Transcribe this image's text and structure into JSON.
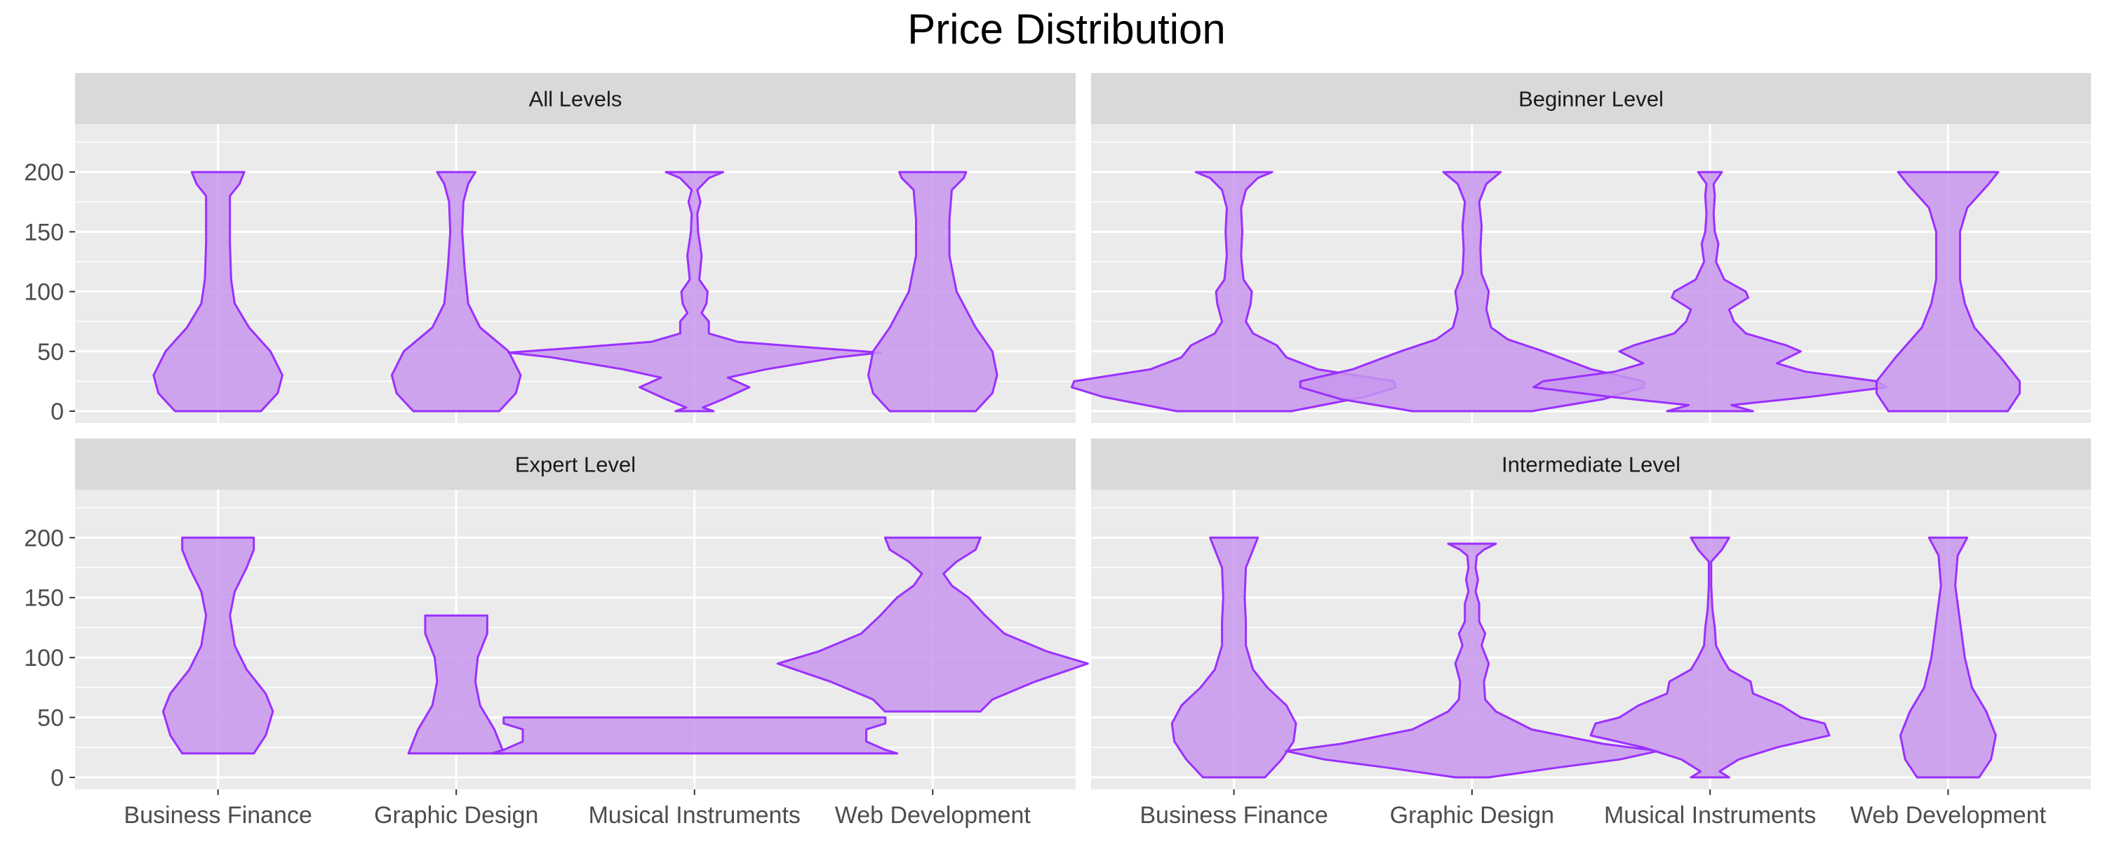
{
  "chart_data": {
    "type": "violin",
    "title": "Price Distribution",
    "xlabel": "",
    "ylabel": "",
    "categories": [
      "Business Finance",
      "Graphic Design",
      "Musical Instruments",
      "Web Development"
    ],
    "ylim": [
      -10,
      240
    ],
    "y_ticks": [
      0,
      50,
      100,
      150,
      200
    ],
    "grid": true,
    "facet_layout": "2x2",
    "colors": {
      "fill": "#c896ee",
      "stroke": "#9b30ff",
      "panel_bg": "#ebebeb",
      "strip_bg": "#d9d9d9",
      "grid": "#ffffff"
    },
    "panels": [
      {
        "label": "All Levels",
        "violins": [
          {
            "category": "Business Finance",
            "profile": [
              [
                0,
                0.18
              ],
              [
                15,
                0.25
              ],
              [
                30,
                0.27
              ],
              [
                50,
                0.22
              ],
              [
                70,
                0.13
              ],
              [
                90,
                0.07
              ],
              [
                110,
                0.055
              ],
              [
                140,
                0.05
              ],
              [
                160,
                0.05
              ],
              [
                180,
                0.05
              ],
              [
                190,
                0.09
              ],
              [
                200,
                0.11
              ]
            ]
          },
          {
            "category": "Graphic Design",
            "profile": [
              [
                0,
                0.18
              ],
              [
                15,
                0.25
              ],
              [
                30,
                0.27
              ],
              [
                50,
                0.22
              ],
              [
                70,
                0.1
              ],
              [
                90,
                0.05
              ],
              [
                120,
                0.035
              ],
              [
                150,
                0.025
              ],
              [
                175,
                0.03
              ],
              [
                190,
                0.05
              ],
              [
                200,
                0.08
              ]
            ]
          },
          {
            "category": "Musical Instruments",
            "profile": [
              [
                0,
                0.08
              ],
              [
                3,
                0.035
              ],
              [
                10,
                0.12
              ],
              [
                20,
                0.23
              ],
              [
                28,
                0.14
              ],
              [
                35,
                0.3
              ],
              [
                45,
                0.6
              ],
              [
                49,
                0.78
              ],
              [
                53,
                0.5
              ],
              [
                58,
                0.18
              ],
              [
                65,
                0.06
              ],
              [
                75,
                0.06
              ],
              [
                82,
                0.03
              ],
              [
                90,
                0.05
              ],
              [
                100,
                0.055
              ],
              [
                110,
                0.02
              ],
              [
                130,
                0.03
              ],
              [
                150,
                0.015
              ],
              [
                165,
                0.012
              ],
              [
                175,
                0.025
              ],
              [
                185,
                0.012
              ],
              [
                195,
                0.06
              ],
              [
                200,
                0.12
              ]
            ]
          },
          {
            "category": "Web Development",
            "profile": [
              [
                0,
                0.18
              ],
              [
                15,
                0.25
              ],
              [
                30,
                0.27
              ],
              [
                50,
                0.25
              ],
              [
                70,
                0.18
              ],
              [
                100,
                0.1
              ],
              [
                130,
                0.07
              ],
              [
                160,
                0.07
              ],
              [
                185,
                0.08
              ],
              [
                195,
                0.13
              ],
              [
                200,
                0.14
              ]
            ]
          }
        ]
      },
      {
        "label": "Beginner Level",
        "violins": [
          {
            "category": "Business Finance",
            "profile": [
              [
                0,
                0.24
              ],
              [
                12,
                0.55
              ],
              [
                20,
                0.68
              ],
              [
                25,
                0.67
              ],
              [
                35,
                0.35
              ],
              [
                45,
                0.22
              ],
              [
                55,
                0.18
              ],
              [
                65,
                0.08
              ],
              [
                75,
                0.05
              ],
              [
                90,
                0.07
              ],
              [
                100,
                0.075
              ],
              [
                110,
                0.04
              ],
              [
                130,
                0.03
              ],
              [
                150,
                0.035
              ],
              [
                170,
                0.03
              ],
              [
                185,
                0.05
              ],
              [
                195,
                0.1
              ],
              [
                200,
                0.16
              ]
            ]
          },
          {
            "category": "Graphic Design",
            "profile": [
              [
                0,
                0.25
              ],
              [
                10,
                0.55
              ],
              [
                20,
                0.72
              ],
              [
                25,
                0.72
              ],
              [
                35,
                0.5
              ],
              [
                50,
                0.3
              ],
              [
                60,
                0.15
              ],
              [
                70,
                0.08
              ],
              [
                85,
                0.06
              ],
              [
                100,
                0.07
              ],
              [
                115,
                0.04
              ],
              [
                135,
                0.035
              ],
              [
                155,
                0.04
              ],
              [
                175,
                0.03
              ],
              [
                190,
                0.06
              ],
              [
                200,
                0.12
              ]
            ]
          },
          {
            "category": "Musical Instruments",
            "profile": [
              [
                0,
                0.18
              ],
              [
                5,
                0.09
              ],
              [
                12,
                0.42
              ],
              [
                20,
                0.74
              ],
              [
                25,
                0.7
              ],
              [
                33,
                0.4
              ],
              [
                40,
                0.28
              ],
              [
                50,
                0.38
              ],
              [
                55,
                0.32
              ],
              [
                65,
                0.15
              ],
              [
                75,
                0.1
              ],
              [
                85,
                0.08
              ],
              [
                95,
                0.16
              ],
              [
                100,
                0.15
              ],
              [
                110,
                0.06
              ],
              [
                125,
                0.025
              ],
              [
                140,
                0.035
              ],
              [
                150,
                0.02
              ],
              [
                165,
                0.015
              ],
              [
                180,
                0.02
              ],
              [
                190,
                0.015
              ],
              [
                200,
                0.05
              ]
            ]
          },
          {
            "category": "Web Development",
            "profile": [
              [
                0,
                0.25
              ],
              [
                15,
                0.3
              ],
              [
                25,
                0.3
              ],
              [
                45,
                0.22
              ],
              [
                70,
                0.11
              ],
              [
                90,
                0.07
              ],
              [
                110,
                0.05
              ],
              [
                130,
                0.05
              ],
              [
                150,
                0.05
              ],
              [
                170,
                0.08
              ],
              [
                190,
                0.17
              ],
              [
                200,
                0.21
              ]
            ]
          }
        ]
      },
      {
        "label": "Expert Level",
        "violins": [
          {
            "category": "Business Finance",
            "profile": [
              [
                20,
                0.15
              ],
              [
                35,
                0.2
              ],
              [
                55,
                0.23
              ],
              [
                70,
                0.2
              ],
              [
                90,
                0.12
              ],
              [
                110,
                0.07
              ],
              [
                135,
                0.05
              ],
              [
                155,
                0.07
              ],
              [
                175,
                0.12
              ],
              [
                190,
                0.15
              ],
              [
                200,
                0.15
              ]
            ]
          },
          {
            "category": "Graphic Design",
            "profile": [
              [
                20,
                0.2
              ],
              [
                40,
                0.16
              ],
              [
                60,
                0.1
              ],
              [
                80,
                0.08
              ],
              [
                100,
                0.09
              ],
              [
                120,
                0.13
              ],
              [
                135,
                0.13
              ]
            ]
          },
          {
            "category": "Musical Instruments",
            "profile": [
              [
                20,
                0.85
              ],
              [
                23,
                0.8
              ],
              [
                30,
                0.72
              ],
              [
                35,
                0.72
              ],
              [
                40,
                0.72
              ],
              [
                45,
                0.8
              ],
              [
                50,
                0.8
              ]
            ]
          },
          {
            "category": "Web Development",
            "profile": [
              [
                55,
                0.2
              ],
              [
                65,
                0.25
              ],
              [
                80,
                0.43
              ],
              [
                95,
                0.65
              ],
              [
                105,
                0.48
              ],
              [
                120,
                0.3
              ],
              [
                135,
                0.22
              ],
              [
                150,
                0.15
              ],
              [
                160,
                0.08
              ],
              [
                170,
                0.045
              ],
              [
                180,
                0.1
              ],
              [
                190,
                0.18
              ],
              [
                200,
                0.2
              ]
            ]
          }
        ]
      },
      {
        "label": "Intermediate Level",
        "violins": [
          {
            "category": "Business Finance",
            "profile": [
              [
                0,
                0.13
              ],
              [
                15,
                0.2
              ],
              [
                30,
                0.25
              ],
              [
                45,
                0.26
              ],
              [
                60,
                0.22
              ],
              [
                75,
                0.14
              ],
              [
                90,
                0.08
              ],
              [
                110,
                0.05
              ],
              [
                130,
                0.05
              ],
              [
                150,
                0.045
              ],
              [
                175,
                0.05
              ],
              [
                190,
                0.08
              ],
              [
                200,
                0.1
              ]
            ]
          },
          {
            "category": "Graphic Design",
            "profile": [
              [
                0,
                0.07
              ],
              [
                8,
                0.35
              ],
              [
                15,
                0.62
              ],
              [
                22,
                0.78
              ],
              [
                28,
                0.55
              ],
              [
                40,
                0.25
              ],
              [
                55,
                0.1
              ],
              [
                65,
                0.055
              ],
              [
                80,
                0.05
              ],
              [
                95,
                0.07
              ],
              [
                110,
                0.04
              ],
              [
                120,
                0.055
              ],
              [
                130,
                0.03
              ],
              [
                145,
                0.03
              ],
              [
                155,
                0.015
              ],
              [
                165,
                0.025
              ],
              [
                175,
                0.015
              ],
              [
                185,
                0.02
              ],
              [
                190,
                0.05
              ],
              [
                195,
                0.1
              ]
            ]
          },
          {
            "category": "Musical Instruments",
            "profile": [
              [
                0,
                0.08
              ],
              [
                5,
                0.04
              ],
              [
                15,
                0.12
              ],
              [
                25,
                0.28
              ],
              [
                35,
                0.5
              ],
              [
                45,
                0.48
              ],
              [
                50,
                0.38
              ],
              [
                60,
                0.3
              ],
              [
                70,
                0.18
              ],
              [
                80,
                0.17
              ],
              [
                90,
                0.08
              ],
              [
                100,
                0.05
              ],
              [
                110,
                0.025
              ],
              [
                125,
                0.02
              ],
              [
                140,
                0.01
              ],
              [
                160,
                0.005
              ],
              [
                180,
                0.005
              ],
              [
                190,
                0.05
              ],
              [
                200,
                0.08
              ]
            ]
          },
          {
            "category": "Web Development",
            "profile": [
              [
                0,
                0.13
              ],
              [
                15,
                0.18
              ],
              [
                35,
                0.2
              ],
              [
                55,
                0.16
              ],
              [
                75,
                0.1
              ],
              [
                100,
                0.07
              ],
              [
                130,
                0.05
              ],
              [
                160,
                0.03
              ],
              [
                185,
                0.04
              ],
              [
                200,
                0.08
              ]
            ]
          }
        ]
      }
    ]
  }
}
